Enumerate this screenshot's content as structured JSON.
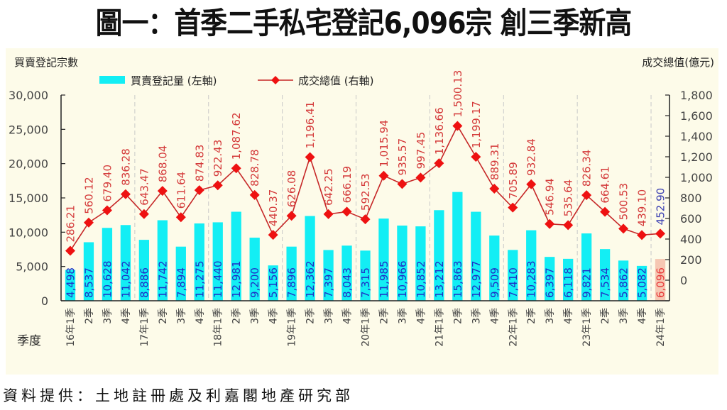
{
  "title": "圖一：首季二手私宅登記6,096宗  創三季新高",
  "source": "資料提供：土地註冊處及利嘉閣地產研究部",
  "colors": {
    "bar": "#13eef4",
    "bar_highlight": "#f6c7b3",
    "line": "#c62727",
    "marker": "#ee1111",
    "bar_label": "#1f2fc6",
    "line_label": "#d43a3a",
    "latest_label_bar": "#e83b3b",
    "latest_label_line": "#3a3fb2",
    "background": "#fdfbe9"
  },
  "chart_data": {
    "type": "bar+line",
    "title": "圖一：首季二手私宅登記6,096宗  創三季新高",
    "ylabel_left": "買賣登記宗數",
    "ylabel_right": "成交總值(億元)",
    "xlabel": "季度",
    "legend": {
      "placement": "top-left",
      "entries": [
        "買賣登記量 (左軸)",
        "成交總值 (右軸)"
      ]
    },
    "ylim_left": [
      0,
      30000
    ],
    "yticks_left": [
      "0",
      "5,000",
      "10,000",
      "15,000",
      "20,000",
      "25,000",
      "30,000"
    ],
    "ylim_right": [
      -200,
      1800
    ],
    "yticks_right": [
      "0",
      "200",
      "400",
      "600",
      "800",
      "1,000",
      "1,200",
      "1,400",
      "1,600",
      "1,800"
    ],
    "grid": "vertical dashed separators between years",
    "categories": [
      "16年1季",
      "2季",
      "3季",
      "4季",
      "17年1季",
      "2季",
      "3季",
      "4季",
      "18年1季",
      "2季",
      "3季",
      "4季",
      "19年1季",
      "2季",
      "3季",
      "4季",
      "20年1季",
      "2季",
      "3季",
      "4季",
      "21年1季",
      "2季",
      "3季",
      "4季",
      "22年1季",
      "2季",
      "3季",
      "4季",
      "23年1季",
      "2季",
      "3季",
      "4季",
      "24年1季"
    ],
    "series": [
      {
        "name": "買賣登記量 (左軸)",
        "type": "bar",
        "axis": "left",
        "values": [
          4498,
          8537,
          10628,
          11042,
          8886,
          11742,
          7894,
          11275,
          11440,
          12981,
          9200,
          5156,
          7896,
          12362,
          7397,
          8043,
          7315,
          11985,
          10966,
          10852,
          13212,
          15863,
          12977,
          9509,
          7410,
          10283,
          6397,
          6118,
          9821,
          7534,
          5862,
          5082,
          6096
        ],
        "labels": [
          "4,498",
          "8,537",
          "10,628",
          "11,042",
          "8,886",
          "11,742",
          "7,894",
          "11,275",
          "11,440",
          "12,981",
          "9,200",
          "5,156",
          "7,896",
          "12,362",
          "7,397",
          "8,043",
          "7,315",
          "11,985",
          "10,966",
          "10,852",
          "13,212",
          "15,863",
          "12,977",
          "9,509",
          "7,410",
          "10,283",
          "6,397",
          "6,118",
          "9,821",
          "7,534",
          "5,862",
          "5,082",
          "6,096"
        ]
      },
      {
        "name": "成交總值 (右軸)",
        "type": "line",
        "axis": "right",
        "values": [
          286.21,
          560.12,
          679.4,
          836.28,
          643.47,
          868.04,
          611.64,
          874.83,
          922.43,
          1087.62,
          828.78,
          440.37,
          626.08,
          1196.41,
          642.25,
          666.19,
          592.53,
          1015.94,
          935.57,
          997.45,
          1136.66,
          1500.13,
          1199.17,
          889.31,
          705.89,
          932.84,
          546.94,
          535.64,
          826.34,
          664.61,
          500.53,
          439.1,
          452.9
        ],
        "labels": [
          "286.21",
          "560.12",
          "679.40",
          "836.28",
          "643.47",
          "868.04",
          "611.64",
          "874.83",
          "922.43",
          "1,087.62",
          "828.78",
          "440.37",
          "626.08",
          "1,196.41",
          "642.25",
          "666.19",
          "592.53",
          "1,015.94",
          "935.57",
          "997.45",
          "1,136.66",
          "1,500.13",
          "1,199.17",
          "889.31",
          "705.89",
          "932.84",
          "546.94",
          "535.64",
          "826.34",
          "664.61",
          "500.53",
          "439.10",
          "452.90"
        ]
      }
    ]
  }
}
